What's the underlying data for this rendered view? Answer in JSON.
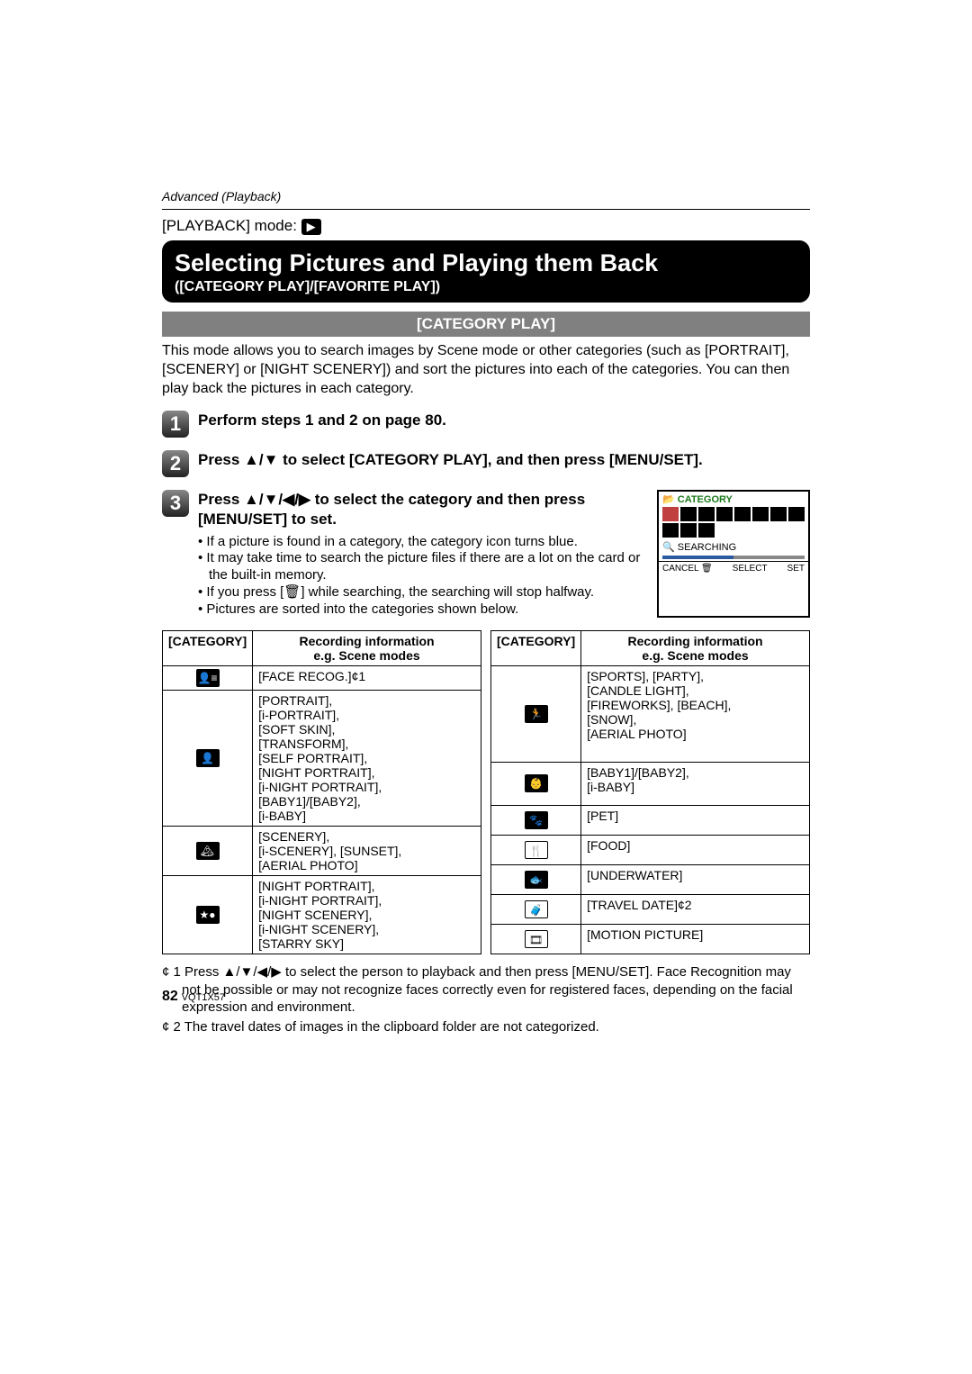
{
  "header": {
    "section_label": "Advanced (Playback)",
    "mode_prefix": "[PLAYBACK] mode:",
    "play_icon_name": "playback-icon"
  },
  "title": {
    "main": "Selecting Pictures and Playing them Back",
    "sub": "([CATEGORY PLAY]/[FAVORITE PLAY])"
  },
  "section_heading": "[CATEGORY PLAY]",
  "intro": "This mode allows you to search images by Scene mode or other categories (such as [PORTRAIT], [SCENERY] or [NIGHT SCENERY]) and sort the pictures into each of the categories. You can then play back the pictures in each category.",
  "steps": {
    "s1": {
      "num": "1",
      "head": "Perform steps 1 and 2 on page 80."
    },
    "s2": {
      "num": "2",
      "head": "Press ▲/▼ to select [CATEGORY PLAY], and then press [MENU/SET]."
    },
    "s3": {
      "num": "3",
      "head": "Press ▲/▼/◀/▶ to select the category and then press [MENU/SET] to set.",
      "b1": "If a picture is found in a category, the category icon turns blue.",
      "b2": "It may take time to search the picture files if there are a lot on the card or the built-in memory.",
      "b3": "If you press [🗑] while searching, the searching will stop halfway.",
      "b4": "Pictures are sorted into the categories shown below."
    }
  },
  "mini_screen": {
    "title": "CATEGORY",
    "searching": "SEARCHING",
    "cancel": "CANCEL 🗑",
    "select": "SELECT",
    "set": "SET"
  },
  "table_headers": {
    "cat": "[CATEGORY]",
    "rec": "Recording information\ne.g. Scene modes"
  },
  "left_table": [
    {
      "icon": "face-recog-icon",
      "glyph": "👤≡",
      "dark": true,
      "text": "[FACE RECOG.]¢1"
    },
    {
      "icon": "portrait-icon",
      "glyph": "👤",
      "dark": true,
      "text": "[PORTRAIT],\n[i-PORTRAIT],\n[SOFT SKIN],\n[TRANSFORM],\n[SELF PORTRAIT],\n[NIGHT PORTRAIT],\n[i-NIGHT PORTRAIT],\n[BABY1]/[BABY2],\n[i-BABY]"
    },
    {
      "icon": "scenery-icon",
      "glyph": "🏔",
      "dark": true,
      "text": "[SCENERY],\n[i-SCENERY], [SUNSET],\n[AERIAL PHOTO]"
    },
    {
      "icon": "night-scenery-icon",
      "glyph": "★●",
      "dark": true,
      "text": "[NIGHT PORTRAIT],\n[i-NIGHT PORTRAIT],\n[NIGHT SCENERY],\n[i-NIGHT SCENERY],\n[STARRY SKY]"
    }
  ],
  "right_table": [
    {
      "icon": "sports-icon",
      "glyph": "🏃",
      "dark": true,
      "text": "[SPORTS], [PARTY],\n[CANDLE LIGHT],\n[FIREWORKS], [BEACH],\n[SNOW],\n[AERIAL PHOTO]"
    },
    {
      "icon": "baby-icon",
      "glyph": "👶",
      "dark": true,
      "text": "[BABY1]/[BABY2],\n[i-BABY]"
    },
    {
      "icon": "pet-icon",
      "glyph": "🐾",
      "dark": true,
      "text": "[PET]"
    },
    {
      "icon": "food-icon",
      "glyph": "🍴",
      "dark": false,
      "text": "[FOOD]"
    },
    {
      "icon": "underwater-icon",
      "glyph": "🐟",
      "dark": true,
      "text": "[UNDERWATER]"
    },
    {
      "icon": "travel-date-icon",
      "glyph": "🧳",
      "dark": false,
      "text": "[TRAVEL DATE]¢2"
    },
    {
      "icon": "motion-picture-icon",
      "glyph": "🎞",
      "dark": false,
      "text": "[MOTION PICTURE]"
    }
  ],
  "footnotes": {
    "f1": "¢ 1 Press ▲/▼/◀/▶ to select the person to playback and then press [MENU/SET]. Face Recognition may not be possible or may not recognize faces correctly even for registered faces, depending on the facial expression and environment.",
    "f2": "¢ 2 The travel dates of images in the clipboard folder are not categorized."
  },
  "footer": {
    "page": "82",
    "code": "VQT1X57"
  }
}
